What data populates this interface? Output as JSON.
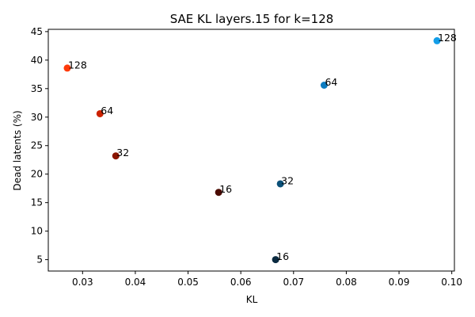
{
  "chart_data": {
    "type": "scatter",
    "title": "SAE KL layers.15 for k=128",
    "xlabel": "KL",
    "ylabel": "Dead latents (%)",
    "xlim": [
      0.0235,
      0.1005
    ],
    "ylim": [
      3.0,
      45.4
    ],
    "xticks": [
      "0.03",
      "0.04",
      "0.05",
      "0.06",
      "0.07",
      "0.08",
      "0.09",
      "0.10"
    ],
    "xtick_values": [
      0.03,
      0.04,
      0.05,
      0.06,
      0.07,
      0.08,
      0.09,
      0.1
    ],
    "yticks": [
      "5",
      "10",
      "15",
      "20",
      "25",
      "30",
      "35",
      "40",
      "45"
    ],
    "ytick_values": [
      5,
      10,
      15,
      20,
      25,
      30,
      35,
      40,
      45
    ],
    "grid": false,
    "points": [
      {
        "x": 0.0271,
        "y": 38.6,
        "label": "128",
        "color": "#ff3a0a"
      },
      {
        "x": 0.0333,
        "y": 30.6,
        "label": "64",
        "color": "#cc2200"
      },
      {
        "x": 0.0363,
        "y": 23.2,
        "label": "32",
        "color": "#8b1500"
      },
      {
        "x": 0.0558,
        "y": 16.8,
        "label": "16",
        "color": "#4a0a00"
      },
      {
        "x": 0.0666,
        "y": 5.0,
        "label": "16",
        "color": "#0a2a40"
      },
      {
        "x": 0.0675,
        "y": 18.3,
        "label": "32",
        "color": "#0b5078"
      },
      {
        "x": 0.0758,
        "y": 35.6,
        "label": "64",
        "color": "#0d7cc0"
      },
      {
        "x": 0.0972,
        "y": 43.4,
        "label": "128",
        "color": "#139ee8"
      }
    ]
  }
}
